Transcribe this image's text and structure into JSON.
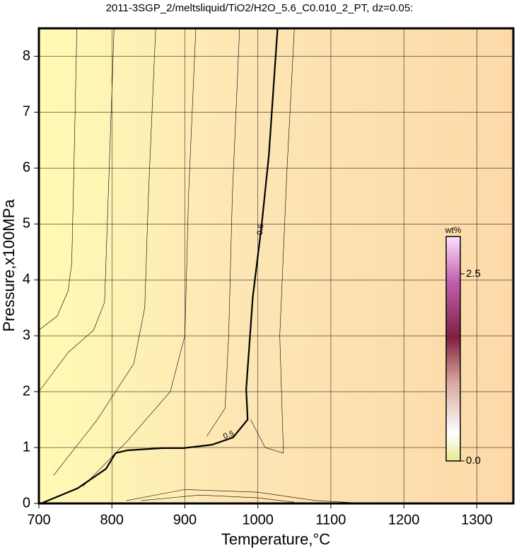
{
  "chart_data": {
    "type": "contour",
    "title": "2011-3SGP_2/meltsliquid/TiO2/H2O_5.6_C0.010_2_PT, dz=0.05:",
    "x_label": "Temperature,°C",
    "y_label": "Pressure,x100MPa",
    "xlim": [
      700,
      1350
    ],
    "ylim": [
      0,
      8.5
    ],
    "xticks": [
      700,
      800,
      900,
      1000,
      1100,
      1200,
      1300
    ],
    "yticks": [
      0,
      1,
      2,
      3,
      4,
      5,
      6,
      7,
      8
    ],
    "grid": true,
    "series": [
      {
        "color": "#000000",
        "linewidth": 2.2,
        "x": [
          703,
          753,
          792,
          805,
          821,
          869,
          898,
          937,
          966,
          986,
          984,
          993,
          1005,
          1015,
          1027
        ],
        "y": [
          0,
          0.27,
          0.62,
          0.9,
          0.95,
          0.99,
          0.99,
          1.05,
          1.18,
          1.5,
          2.04,
          3.69,
          4.96,
          6.22,
          8.5
        ]
      },
      {
        "color": "#000000",
        "linewidth": 0.6,
        "x": [
          700,
          725,
          740,
          745,
          748,
          752
        ],
        "y": [
          3.1,
          3.35,
          3.8,
          4.3,
          6,
          8.5
        ]
      },
      {
        "color": "#000000",
        "linewidth": 0.6,
        "x": [
          700,
          740,
          775,
          790,
          795,
          803
        ],
        "y": [
          2.0,
          2.7,
          3.1,
          3.6,
          5.5,
          8.5
        ]
      },
      {
        "color": "#000000",
        "linewidth": 0.6,
        "x": [
          720,
          780,
          830,
          845,
          850,
          860
        ],
        "y": [
          0.5,
          1.5,
          2.5,
          3.5,
          5.5,
          8.5
        ]
      },
      {
        "color": "#000000",
        "linewidth": 0.6,
        "x": [
          760,
          820,
          880,
          900,
          905,
          915
        ],
        "y": [
          0.3,
          1.1,
          2.0,
          3.0,
          5.5,
          8.5
        ]
      },
      {
        "color": "#000000",
        "linewidth": 0.6,
        "x": [
          930,
          955,
          960,
          965,
          975
        ],
        "y": [
          1.2,
          1.7,
          3.0,
          5.5,
          8.5
        ]
      },
      {
        "color": "#000000",
        "linewidth": 0.6,
        "x": [
          990,
          1010,
          1035,
          1030,
          1040,
          1050
        ],
        "y": [
          1.5,
          1.0,
          0.9,
          3.0,
          6.0,
          8.5
        ]
      },
      {
        "color": "#000000",
        "linewidth": 0.6,
        "x": [
          820,
          900,
          1000,
          1080,
          1150
        ],
        "y": [
          0.05,
          0.25,
          0.2,
          0.05,
          0
        ]
      },
      {
        "color": "#000000",
        "linewidth": 0.6,
        "x": [
          840,
          920,
          1000,
          1050
        ],
        "y": [
          0.05,
          0.15,
          0.1,
          0.02
        ]
      }
    ],
    "contour_labels": [
      {
        "text": "0.5",
        "x": 1004,
        "y": 4.9
      },
      {
        "text": "0.5",
        "x": 960,
        "y": 1.22
      }
    ],
    "colorbar": {
      "label": "wt%",
      "lim": [
        0,
        3.0
      ],
      "ticks": [
        {
          "value": 0,
          "label": "0.0"
        },
        2.5
      ]
    }
  }
}
